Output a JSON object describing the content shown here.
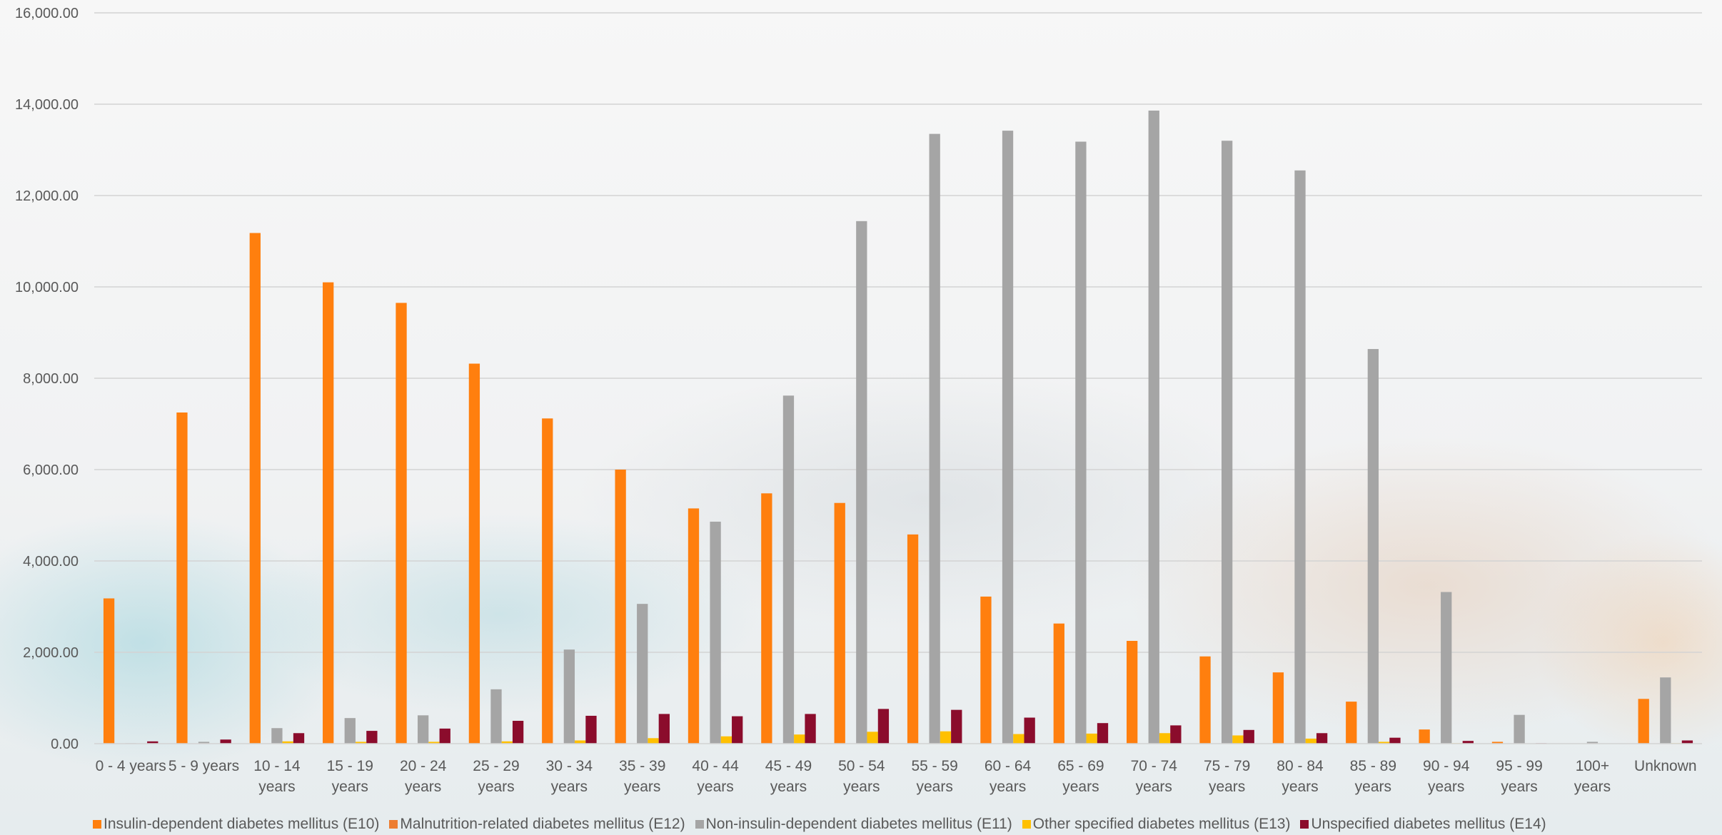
{
  "chart_data": {
    "type": "bar",
    "title": "",
    "xlabel": "",
    "ylabel": "",
    "ylim": [
      0,
      16000
    ],
    "yticks": [
      "0.00",
      "2,000.00",
      "4,000.00",
      "6,000.00",
      "8,000.00",
      "10,000.00",
      "12,000.00",
      "14,000.00",
      "16,000.00"
    ],
    "grid": true,
    "legend_position": "bottom",
    "categories": [
      "0 - 4 years",
      "5 - 9 years",
      "10 - 14 years",
      "15 - 19 years",
      "20 - 24 years",
      "25 - 29 years",
      "30 - 34 years",
      "35 - 39 years",
      "40 - 44 years",
      "45 - 49 years",
      "50 - 54 years",
      "55 - 59 years",
      "60 - 64 years",
      "65 - 69 years",
      "70 - 74 years",
      "75 - 79 years",
      "80 - 84 years",
      "85 - 89 years",
      "90 - 94 years",
      "95 - 99 years",
      "100+ years",
      "Unknown"
    ],
    "category_lines": [
      [
        "0 - 4 years"
      ],
      [
        "5 - 9 years"
      ],
      [
        "10 - 14",
        "years"
      ],
      [
        "15 - 19",
        "years"
      ],
      [
        "20 - 24",
        "years"
      ],
      [
        "25 - 29",
        "years"
      ],
      [
        "30 - 34",
        "years"
      ],
      [
        "35 - 39",
        "years"
      ],
      [
        "40 - 44",
        "years"
      ],
      [
        "45 - 49",
        "years"
      ],
      [
        "50 - 54",
        "years"
      ],
      [
        "55 - 59",
        "years"
      ],
      [
        "60 - 64",
        "years"
      ],
      [
        "65 - 69",
        "years"
      ],
      [
        "70 - 74",
        "years"
      ],
      [
        "75 - 79",
        "years"
      ],
      [
        "80 - 84",
        "years"
      ],
      [
        "85 - 89",
        "years"
      ],
      [
        "90 - 94",
        "years"
      ],
      [
        "95 - 99",
        "years"
      ],
      [
        "100+",
        "years"
      ],
      [
        "Unknown"
      ]
    ],
    "series": [
      {
        "name": "Insulin-dependent diabetes mellitus (E10)",
        "color": "#ff7f0e",
        "values": [
          3180,
          7250,
          11180,
          10100,
          9650,
          8320,
          7120,
          6000,
          5150,
          5480,
          5270,
          4580,
          3220,
          2630,
          2250,
          1910,
          1560,
          920,
          310,
          40,
          0,
          980
        ]
      },
      {
        "name": "Malnutrition-related diabetes mellitus (E12)",
        "color": "#ed7d31",
        "values": [
          0,
          0,
          0,
          0,
          0,
          0,
          0,
          0,
          0,
          0,
          0,
          0,
          0,
          0,
          0,
          0,
          0,
          0,
          0,
          0,
          0,
          0
        ]
      },
      {
        "name": "Non-insulin-dependent diabetes mellitus (E11)",
        "color": "#a5a5a5",
        "values": [
          10,
          40,
          340,
          560,
          620,
          1190,
          2060,
          3060,
          4860,
          7620,
          11440,
          13350,
          13420,
          13180,
          13860,
          13200,
          12550,
          8640,
          3320,
          630,
          40,
          1450
        ]
      },
      {
        "name": "Other specified diabetes mellitus (E13)",
        "color": "#ffc000",
        "values": [
          0,
          0,
          50,
          40,
          40,
          50,
          70,
          120,
          160,
          200,
          260,
          270,
          210,
          220,
          230,
          180,
          110,
          40,
          10,
          0,
          0,
          10
        ]
      },
      {
        "name": "Unspecified diabetes mellitus (E14)",
        "color": "#8b0c2c",
        "values": [
          50,
          90,
          230,
          280,
          330,
          500,
          610,
          650,
          600,
          650,
          760,
          740,
          570,
          450,
          400,
          300,
          230,
          130,
          60,
          10,
          0,
          70
        ]
      }
    ]
  }
}
